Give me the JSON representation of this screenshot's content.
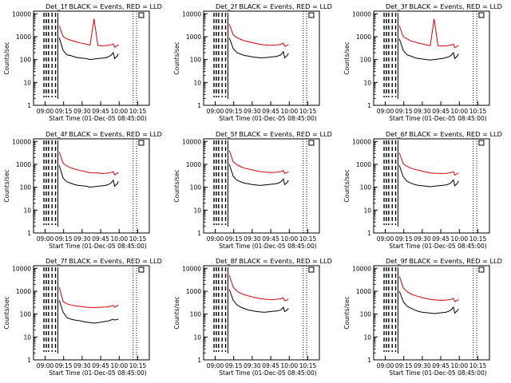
{
  "figure": {
    "x_tick_labels": [
      "09:00",
      "09:15",
      "09:30",
      "09:45",
      "10:00",
      "10:15"
    ],
    "y_tick_labels": [
      "1",
      "10",
      "100",
      "1000",
      "10000"
    ],
    "ylabel": "Counts/sec",
    "xlabel": "Start Time (01-Dec-05 08:45:00)",
    "colors": {
      "events": "#000000",
      "lld": "#d40000"
    }
  },
  "chart_data": [
    {
      "type": "line",
      "title": "Det_1f BLACK = Events, RED = LLD",
      "scale_y": "log",
      "ylim": [
        1,
        13000
      ],
      "x_minutes_after_start": [
        0,
        5,
        9,
        12,
        14,
        17,
        20,
        23,
        26,
        29,
        32,
        35,
        38,
        41,
        44,
        47,
        50,
        53,
        56,
        58,
        60,
        62,
        63,
        65,
        66,
        68,
        70,
        74,
        78,
        82,
        86
      ],
      "series": [
        {
          "name": "Events",
          "values": [
            null,
            null,
            null,
            null,
            null,
            null,
            900,
            250,
            160,
            150,
            130,
            120,
            115,
            110,
            100,
            105,
            110,
            115,
            120,
            130,
            150,
            200,
            110,
            140,
            180,
            null,
            null,
            null,
            null,
            null,
            null
          ]
        },
        {
          "name": "LLD",
          "values": [
            null,
            null,
            null,
            null,
            null,
            null,
            3000,
            1000,
            800,
            700,
            620,
            560,
            510,
            470,
            430,
            6000,
            420,
            400,
            410,
            420,
            440,
            480,
            350,
            400,
            450,
            null,
            null,
            null,
            null,
            null,
            null
          ]
        }
      ]
    },
    {
      "type": "line",
      "title": "Det_2f BLACK = Events, RED = LLD",
      "scale_y": "log",
      "ylim": [
        1,
        13000
      ],
      "x_minutes_after_start": [
        0,
        5,
        9,
        12,
        14,
        17,
        20,
        23,
        26,
        29,
        32,
        35,
        38,
        41,
        44,
        47,
        50,
        53,
        56,
        58,
        60,
        62,
        63,
        65,
        66,
        68,
        70,
        74,
        78,
        82,
        86
      ],
      "series": [
        {
          "name": "Events",
          "values": [
            null,
            null,
            null,
            null,
            null,
            null,
            900,
            300,
            200,
            170,
            150,
            140,
            130,
            125,
            120,
            120,
            125,
            130,
            135,
            145,
            160,
            220,
            120,
            150,
            190,
            null,
            null,
            null,
            null,
            null,
            null
          ]
        },
        {
          "name": "LLD",
          "values": [
            null,
            null,
            null,
            null,
            null,
            null,
            3500,
            1200,
            900,
            750,
            650,
            600,
            550,
            500,
            460,
            440,
            430,
            420,
            430,
            440,
            460,
            520,
            380,
            420,
            460,
            null,
            null,
            null,
            null,
            null,
            null
          ]
        }
      ]
    },
    {
      "type": "line",
      "title": "Det_3f BLACK = Events, RED = LLD",
      "scale_y": "log",
      "ylim": [
        1,
        13000
      ],
      "x_minutes_after_start": [
        0,
        5,
        9,
        12,
        14,
        17,
        20,
        23,
        26,
        29,
        32,
        35,
        38,
        41,
        44,
        47,
        50,
        53,
        56,
        58,
        60,
        62,
        63,
        65,
        66,
        68,
        70,
        74,
        78,
        82,
        86
      ],
      "series": [
        {
          "name": "Events",
          "values": [
            null,
            null,
            null,
            null,
            null,
            null,
            800,
            250,
            160,
            140,
            120,
            110,
            105,
            100,
            95,
            100,
            105,
            110,
            120,
            130,
            150,
            200,
            110,
            140,
            180,
            null,
            null,
            null,
            null,
            null,
            null
          ]
        },
        {
          "name": "LLD",
          "values": [
            null,
            null,
            null,
            null,
            null,
            null,
            3000,
            1000,
            800,
            650,
            580,
            520,
            480,
            440,
            410,
            6000,
            400,
            390,
            400,
            410,
            430,
            470,
            330,
            380,
            420,
            null,
            null,
            null,
            null,
            null,
            null
          ]
        }
      ]
    },
    {
      "type": "line",
      "title": "Det_4f BLACK = Events, RED = LLD",
      "scale_y": "log",
      "ylim": [
        1,
        13000
      ],
      "x_minutes_after_start": [
        0,
        5,
        9,
        12,
        14,
        17,
        20,
        23,
        26,
        29,
        32,
        35,
        38,
        41,
        44,
        47,
        50,
        53,
        56,
        58,
        60,
        62,
        63,
        65,
        66,
        68,
        70,
        74,
        78,
        82,
        86
      ],
      "series": [
        {
          "name": "Events",
          "values": [
            null,
            null,
            null,
            null,
            null,
            null,
            900,
            250,
            170,
            150,
            130,
            120,
            115,
            110,
            100,
            105,
            110,
            115,
            120,
            130,
            150,
            200,
            110,
            140,
            180,
            null,
            null,
            null,
            null,
            null,
            null
          ]
        },
        {
          "name": "LLD",
          "values": [
            null,
            null,
            null,
            null,
            null,
            null,
            3500,
            1100,
            850,
            700,
            620,
            560,
            510,
            470,
            430,
            420,
            420,
            400,
            410,
            420,
            440,
            480,
            350,
            400,
            450,
            null,
            null,
            null,
            null,
            null,
            null
          ]
        }
      ]
    },
    {
      "type": "line",
      "title": "Det_5f BLACK = Events, RED = LLD",
      "scale_y": "log",
      "ylim": [
        1,
        13000
      ],
      "x_minutes_after_start": [
        0,
        5,
        9,
        12,
        14,
        17,
        20,
        23,
        26,
        29,
        32,
        35,
        38,
        41,
        44,
        47,
        50,
        53,
        56,
        58,
        60,
        62,
        63,
        65,
        66,
        68,
        70,
        74,
        78,
        82,
        86
      ],
      "series": [
        {
          "name": "Events",
          "values": [
            null,
            null,
            null,
            null,
            null,
            null,
            1000,
            300,
            200,
            170,
            150,
            140,
            130,
            125,
            120,
            125,
            130,
            135,
            140,
            150,
            170,
            230,
            130,
            160,
            200,
            null,
            null,
            null,
            null,
            null,
            null
          ]
        },
        {
          "name": "LLD",
          "values": [
            null,
            null,
            null,
            null,
            null,
            null,
            4000,
            1300,
            950,
            780,
            680,
            620,
            570,
            520,
            480,
            460,
            450,
            440,
            450,
            460,
            480,
            540,
            400,
            440,
            480,
            null,
            null,
            null,
            null,
            null,
            null
          ]
        }
      ]
    },
    {
      "type": "line",
      "title": "Det_6f BLACK = Events, RED = LLD",
      "scale_y": "log",
      "ylim": [
        1,
        13000
      ],
      "x_minutes_after_start": [
        0,
        5,
        9,
        12,
        14,
        17,
        20,
        23,
        26,
        29,
        32,
        35,
        38,
        41,
        44,
        47,
        50,
        53,
        56,
        58,
        60,
        62,
        63,
        65,
        66,
        68,
        70,
        74,
        78,
        82,
        86
      ],
      "series": [
        {
          "name": "Events",
          "values": [
            null,
            null,
            null,
            null,
            null,
            null,
            900,
            280,
            180,
            150,
            130,
            120,
            115,
            110,
            105,
            110,
            115,
            120,
            125,
            135,
            155,
            210,
            115,
            145,
            185,
            null,
            null,
            null,
            null,
            null,
            null
          ]
        },
        {
          "name": "LLD",
          "values": [
            null,
            null,
            null,
            null,
            null,
            null,
            3200,
            1050,
            820,
            680,
            600,
            550,
            500,
            460,
            420,
            410,
            405,
            395,
            405,
            415,
            435,
            480,
            340,
            390,
            430,
            null,
            null,
            null,
            null,
            null,
            null
          ]
        }
      ]
    },
    {
      "type": "line",
      "title": "Det_7f BLACK = Events, RED = LLD",
      "scale_y": "log",
      "ylim": [
        1,
        13000
      ],
      "x_minutes_after_start": [
        0,
        5,
        9,
        12,
        14,
        17,
        20,
        23,
        26,
        29,
        32,
        35,
        38,
        41,
        44,
        47,
        50,
        53,
        56,
        58,
        60,
        62,
        63,
        65,
        66,
        68,
        70,
        74,
        78,
        82,
        86
      ],
      "series": [
        {
          "name": "Events",
          "values": [
            null,
            null,
            null,
            null,
            null,
            null,
            400,
            120,
            70,
            60,
            55,
            52,
            48,
            45,
            42,
            40,
            42,
            45,
            48,
            50,
            55,
            60,
            55,
            58,
            60,
            null,
            null,
            null,
            null,
            null,
            null
          ]
        },
        {
          "name": "LLD",
          "values": [
            null,
            null,
            null,
            null,
            null,
            null,
            1500,
            350,
            280,
            250,
            230,
            220,
            210,
            200,
            195,
            190,
            195,
            200,
            205,
            210,
            220,
            240,
            200,
            230,
            250,
            null,
            null,
            null,
            null,
            null,
            null
          ]
        }
      ]
    },
    {
      "type": "line",
      "title": "Det_8f BLACK = Events, RED = LLD",
      "scale_y": "log",
      "ylim": [
        1,
        13000
      ],
      "x_minutes_after_start": [
        0,
        5,
        9,
        12,
        14,
        17,
        20,
        23,
        26,
        29,
        32,
        35,
        38,
        41,
        44,
        47,
        50,
        53,
        56,
        58,
        60,
        62,
        63,
        65,
        66,
        68,
        70,
        74,
        78,
        82,
        86
      ],
      "series": [
        {
          "name": "Events",
          "values": [
            null,
            null,
            null,
            null,
            null,
            null,
            1200,
            400,
            250,
            200,
            170,
            150,
            140,
            130,
            125,
            120,
            125,
            130,
            135,
            140,
            150,
            200,
            130,
            150,
            180,
            null,
            null,
            null,
            null,
            null,
            null
          ]
        },
        {
          "name": "LLD",
          "values": [
            null,
            null,
            null,
            null,
            null,
            null,
            5000,
            1500,
            1000,
            800,
            700,
            620,
            560,
            510,
            470,
            450,
            440,
            430,
            440,
            450,
            470,
            520,
            380,
            420,
            460,
            null,
            null,
            null,
            null,
            null,
            null
          ]
        }
      ]
    },
    {
      "type": "line",
      "title": "Det_9f BLACK = Events, RED = LLD",
      "scale_y": "log",
      "ylim": [
        1,
        13000
      ],
      "x_minutes_after_start": [
        0,
        5,
        9,
        12,
        14,
        17,
        20,
        23,
        26,
        29,
        32,
        35,
        38,
        41,
        44,
        47,
        50,
        53,
        56,
        58,
        60,
        62,
        63,
        65,
        66,
        68,
        70,
        74,
        78,
        82,
        86
      ],
      "series": [
        {
          "name": "Events",
          "values": [
            null,
            null,
            null,
            null,
            null,
            null,
            1000,
            350,
            220,
            180,
            150,
            130,
            120,
            115,
            110,
            105,
            110,
            115,
            120,
            130,
            150,
            200,
            110,
            140,
            170,
            null,
            null,
            null,
            null,
            null,
            null
          ]
        },
        {
          "name": "LLD",
          "values": [
            null,
            null,
            null,
            null,
            null,
            null,
            4500,
            1400,
            950,
            750,
            650,
            580,
            520,
            480,
            440,
            420,
            410,
            400,
            410,
            420,
            440,
            490,
            350,
            400,
            440,
            null,
            null,
            null,
            null,
            null,
            null
          ]
        }
      ]
    }
  ]
}
